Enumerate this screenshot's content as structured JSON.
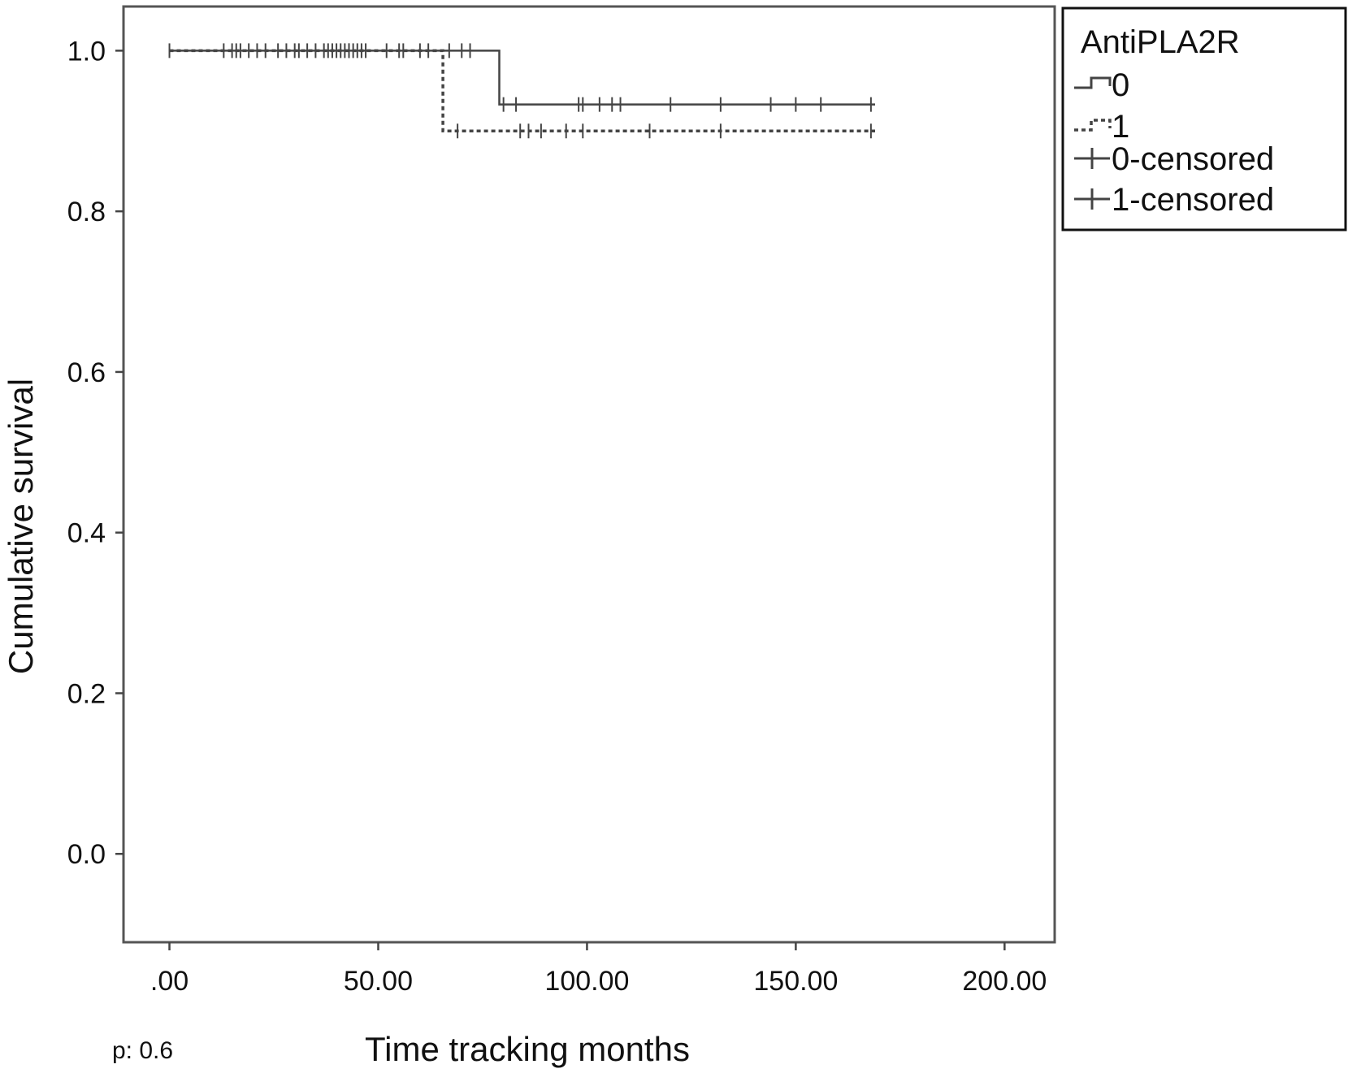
{
  "chart_data": {
    "type": "line",
    "subtype": "kaplan-meier step",
    "title": "",
    "xlabel": "Time tracking months",
    "ylabel": "Cumulative survival",
    "xlim": [
      -11,
      212
    ],
    "ylim": [
      -0.11,
      1.055
    ],
    "xticks": [
      0,
      50,
      100,
      150,
      200
    ],
    "xtick_labels": [
      ".00",
      "50.00",
      "100.00",
      "150.00",
      "200.00"
    ],
    "yticks": [
      0,
      0.2,
      0.4,
      0.6,
      0.8,
      1.0
    ],
    "ytick_labels": [
      "0.0",
      "0.2",
      "0.4",
      "0.6",
      "0.8",
      "1.0"
    ],
    "grid": false,
    "annotation": "p: 0.6",
    "legend": {
      "title": "AntiPLA2R",
      "position": "outside-top-right",
      "entries": [
        "0",
        "1",
        "0-censored",
        "1-censored"
      ]
    },
    "series": [
      {
        "name": "0",
        "style": "solid",
        "color": "#444444",
        "steps": [
          [
            0,
            1.0
          ],
          [
            79,
            1.0
          ],
          [
            79,
            0.933
          ],
          [
            169,
            0.933
          ]
        ],
        "censored": [
          [
            0,
            1.0
          ],
          [
            13,
            1.0
          ],
          [
            15,
            1.0
          ],
          [
            17,
            1.0
          ],
          [
            19,
            1.0
          ],
          [
            21,
            1.0
          ],
          [
            26,
            1.0
          ],
          [
            28,
            1.0
          ],
          [
            30,
            1.0
          ],
          [
            33,
            1.0
          ],
          [
            35,
            1.0
          ],
          [
            37,
            1.0
          ],
          [
            39,
            1.0
          ],
          [
            40,
            1.0
          ],
          [
            41,
            1.0
          ],
          [
            42,
            1.0
          ],
          [
            43,
            1.0
          ],
          [
            44,
            1.0
          ],
          [
            45,
            1.0
          ],
          [
            47,
            1.0
          ],
          [
            52,
            1.0
          ],
          [
            56,
            1.0
          ],
          [
            60,
            1.0
          ],
          [
            62,
            1.0
          ],
          [
            67,
            1.0
          ],
          [
            70,
            1.0
          ],
          [
            72,
            1.0
          ],
          [
            80,
            0.933
          ],
          [
            83,
            0.933
          ],
          [
            98,
            0.933
          ],
          [
            99,
            0.933
          ],
          [
            103,
            0.933
          ],
          [
            106,
            0.933
          ],
          [
            108,
            0.933
          ],
          [
            120,
            0.933
          ],
          [
            132,
            0.933
          ],
          [
            144,
            0.933
          ],
          [
            150,
            0.933
          ],
          [
            156,
            0.933
          ],
          [
            168,
            0.933
          ]
        ]
      },
      {
        "name": "1",
        "style": "dashed",
        "color": "#444444",
        "steps": [
          [
            0,
            1.0
          ],
          [
            65.5,
            1.0
          ],
          [
            65.5,
            0.9
          ],
          [
            169,
            0.9
          ]
        ],
        "censored": [
          [
            16,
            1.0
          ],
          [
            23,
            1.0
          ],
          [
            31,
            1.0
          ],
          [
            38,
            1.0
          ],
          [
            43,
            1.0
          ],
          [
            46,
            1.0
          ],
          [
            55,
            1.0
          ],
          [
            69,
            0.9
          ],
          [
            84,
            0.9
          ],
          [
            86,
            0.9
          ],
          [
            89,
            0.9
          ],
          [
            95,
            0.9
          ],
          [
            99,
            0.9
          ],
          [
            115,
            0.9
          ],
          [
            132,
            0.9
          ],
          [
            168,
            0.9
          ]
        ]
      }
    ]
  }
}
